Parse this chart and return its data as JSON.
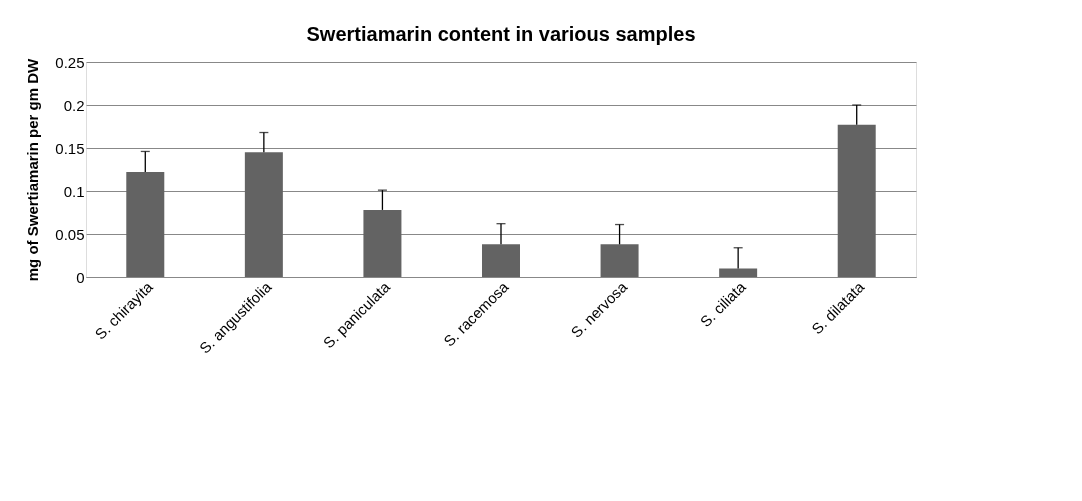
{
  "chart_data": {
    "type": "bar",
    "title": "Swertiamarin content in various samples",
    "ylabel": "mg of Swertiamarin per gm DW",
    "categories": [
      "S. chirayita",
      "S. angustifolia",
      "S. paniculata",
      "S. racemosa",
      "S. nervosa",
      "S. ciliata",
      "S. dilatata"
    ],
    "values": [
      0.122,
      0.145,
      0.078,
      0.038,
      0.038,
      0.01,
      0.177
    ],
    "errors": [
      [
        0.122,
        0.146
      ],
      [
        0.145,
        0.168
      ],
      [
        0.078,
        0.101
      ],
      [
        0.038,
        0.062
      ],
      [
        0.038,
        0.061
      ],
      [
        0.01,
        0.034
      ],
      [
        0.177,
        0.2
      ]
    ],
    "color": "#636363",
    "ylim": [
      0,
      0.25
    ],
    "yticks": [
      0,
      0.05,
      0.1,
      0.15,
      0.2,
      0.25
    ],
    "grid": "y"
  }
}
